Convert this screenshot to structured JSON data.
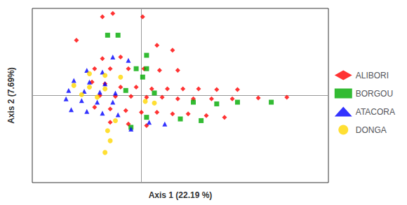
{
  "chart_data": {
    "type": "scatter",
    "xlabel": "Axis 1 (22.19 %)",
    "ylabel": "Axis 2 (7.69%)",
    "xlim": [
      -4.2,
      7.2
    ],
    "ylim": [
      -5.2,
      5.2
    ],
    "tick_labels": false,
    "grid": false,
    "legend": "right",
    "series": [
      {
        "name": "ALIBORI",
        "color": "#FF0000",
        "marker": "diamond",
        "values": [
          [
            -1.5,
            4.7
          ],
          [
            -1.1,
            4.9
          ],
          [
            0.05,
            4.7
          ],
          [
            -2.5,
            3.3
          ],
          [
            0.6,
            3.0
          ],
          [
            1.2,
            2.7
          ],
          [
            -1.5,
            2.2
          ],
          [
            -0.8,
            2.3
          ],
          [
            -1.8,
            1.6
          ],
          [
            -1.2,
            1.6
          ],
          [
            -0.5,
            1.6
          ],
          [
            0.1,
            1.6
          ],
          [
            0.7,
            1.5
          ],
          [
            1.4,
            1.5
          ],
          [
            -1.9,
            0.8
          ],
          [
            -1.4,
            0.7
          ],
          [
            -0.8,
            0.5
          ],
          [
            -0.2,
            0.5
          ],
          [
            0.4,
            0.4
          ],
          [
            1.0,
            0.4
          ],
          [
            1.6,
            0.4
          ],
          [
            2.2,
            0.4
          ],
          [
            2.9,
            0.35
          ],
          [
            3.7,
            0.35
          ],
          [
            -1.6,
            0.0
          ],
          [
            -1.0,
            -0.05
          ],
          [
            -0.4,
            -0.05
          ],
          [
            0.2,
            -0.1
          ],
          [
            0.8,
            -0.1
          ],
          [
            1.4,
            -0.2
          ],
          [
            2.0,
            -0.2
          ],
          [
            2.7,
            -0.2
          ],
          [
            3.5,
            -0.2
          ],
          [
            4.5,
            -0.15
          ],
          [
            5.6,
            -0.1
          ],
          [
            -1.8,
            -0.7
          ],
          [
            -1.2,
            -0.8
          ],
          [
            -0.6,
            -0.9
          ],
          [
            0.0,
            -1.0
          ],
          [
            0.6,
            -1.0
          ],
          [
            1.2,
            -1.1
          ],
          [
            1.8,
            -1.1
          ],
          [
            2.5,
            -1.2
          ],
          [
            3.2,
            -1.3
          ],
          [
            -1.2,
            -1.6
          ],
          [
            -0.5,
            -1.7
          ],
          [
            0.2,
            -1.8
          ]
        ]
      },
      {
        "name": "BORGOU",
        "color": "#00AA00",
        "marker": "square",
        "values": [
          [
            -1.3,
            3.6
          ],
          [
            -0.9,
            3.6
          ],
          [
            0.2,
            2.4
          ],
          [
            -0.2,
            1.6
          ],
          [
            0.2,
            1.6
          ],
          [
            0.05,
            1.1
          ],
          [
            -0.6,
            0.3
          ],
          [
            0.5,
            0.15
          ],
          [
            2.0,
            -0.4
          ],
          [
            2.9,
            -0.5
          ],
          [
            3.7,
            -0.4
          ],
          [
            0.2,
            -1.3
          ],
          [
            1.5,
            -1.4
          ],
          [
            2.3,
            -1.5
          ],
          [
            -0.4,
            -1.9
          ],
          [
            5.0,
            -0.4
          ]
        ]
      },
      {
        "name": "ATACORA",
        "color": "#0000FF",
        "marker": "triangle",
        "values": [
          [
            -1.1,
            2.3
          ],
          [
            -0.5,
            2.1
          ],
          [
            -2.1,
            1.5
          ],
          [
            -1.5,
            1.4
          ],
          [
            -2.6,
            0.9
          ],
          [
            -2.0,
            0.8
          ],
          [
            -1.4,
            0.7
          ],
          [
            -2.8,
            0.3
          ],
          [
            -2.2,
            0.25
          ],
          [
            -1.6,
            0.2
          ],
          [
            -1.0,
            0.15
          ],
          [
            -2.9,
            -0.2
          ],
          [
            -2.3,
            -0.3
          ],
          [
            -1.7,
            -0.4
          ],
          [
            -1.1,
            -0.4
          ],
          [
            -2.7,
            -0.85
          ],
          [
            -2.1,
            -0.95
          ],
          [
            -1.5,
            -1.05
          ],
          [
            -0.9,
            -1.15
          ],
          [
            0.3,
            -1.6
          ],
          [
            0.9,
            -1.7
          ],
          [
            -0.4,
            -2.0
          ]
        ]
      },
      {
        "name": "DONGA",
        "color": "#FFD700",
        "marker": "circle",
        "values": [
          [
            -2.0,
            1.3
          ],
          [
            -1.4,
            1.2
          ],
          [
            -0.8,
            1.1
          ],
          [
            -2.6,
            0.6
          ],
          [
            -2.0,
            0.5
          ],
          [
            -1.4,
            0.4
          ],
          [
            -2.3,
            0.05
          ],
          [
            -1.7,
            -0.1
          ],
          [
            0.15,
            -0.35
          ],
          [
            0.5,
            -0.45
          ],
          [
            -1.0,
            -1.5
          ],
          [
            -1.3,
            -2.1
          ],
          [
            -1.2,
            -2.7
          ],
          [
            -1.4,
            -3.4
          ]
        ]
      }
    ]
  }
}
